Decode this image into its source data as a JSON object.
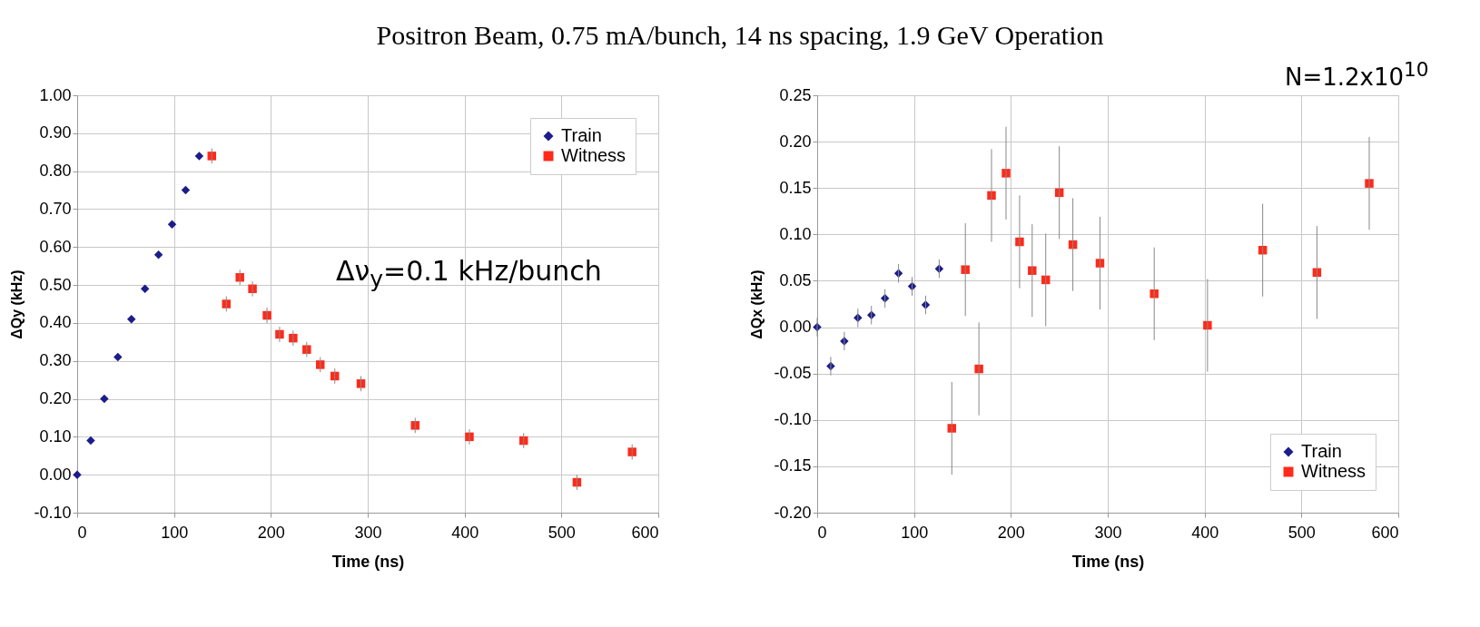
{
  "chart_data": [
    {
      "type": "scatter",
      "title": "Positron Beam, 0.75 mA/bunch, 14 ns spacing, 1.9 GeV Operation",
      "xlabel": "Time  (ns)",
      "ylabel": "ΔQy (kHz)",
      "annotations": [
        "Δν$_{y}$=0.1 kHz/bunch"
      ],
      "grid": true,
      "legend": "top right",
      "xlim": [
        0,
        600
      ],
      "xticks": [
        0,
        100,
        200,
        300,
        400,
        500,
        600
      ],
      "ylim": [
        -0.1,
        1.0
      ],
      "yticks": [
        {
          "value": -0.1,
          "label": "-0.10"
        },
        {
          "value": 0,
          "label": "0.00"
        },
        {
          "value": 0.1,
          "label": "0.10"
        },
        {
          "value": 0.2,
          "label": "0.20"
        },
        {
          "value": 0.3,
          "label": "0.30"
        },
        {
          "value": 0.4,
          "label": "0.40"
        },
        {
          "value": 0.5,
          "label": "0.50"
        },
        {
          "value": 0.6,
          "label": "0.60"
        },
        {
          "value": 0.7,
          "label": "0.70"
        },
        {
          "value": 0.8,
          "label": "0.80"
        },
        {
          "value": 0.9,
          "label": "0.90"
        },
        {
          "value": 1.0,
          "label": "1.00"
        }
      ],
      "series": [
        {
          "name": "Train",
          "color": "#1c1c8a",
          "marker": "diamond",
          "x": [
            0,
            14,
            28,
            42,
            56,
            70,
            84,
            98,
            112,
            126
          ],
          "values": [
            0,
            0.09,
            0.2,
            0.31,
            0.41,
            0.49,
            0.58,
            0.66,
            0.75,
            0.84
          ]
        },
        {
          "name": "Witness",
          "color": "#ff2a1a",
          "marker": "square",
          "x": [
            139,
            154,
            168,
            181,
            196,
            209,
            223,
            237,
            251,
            266,
            293,
            349,
            405,
            461,
            516,
            573
          ],
          "values": [
            0.84,
            0.45,
            0.52,
            0.49,
            0.42,
            0.37,
            0.36,
            0.33,
            0.29,
            0.26,
            0.24,
            0.13,
            0.1,
            0.09,
            -0.02,
            0.06
          ],
          "errors": [
            0.02,
            0.02,
            0.02,
            0.02,
            0.02,
            0.02,
            0.02,
            0.02,
            0.02,
            0.02,
            0.02,
            0.02,
            0.02,
            0.02,
            0.02,
            0.02
          ]
        }
      ]
    },
    {
      "type": "scatter",
      "xlabel": "Time (ns)",
      "ylabel": "ΔQx (kHz)",
      "annotations": [
        "N=1.2x10$^{10}$"
      ],
      "grid": true,
      "legend": "bottom right",
      "xlim": [
        0,
        600
      ],
      "xticks": [
        0,
        100,
        200,
        300,
        400,
        500,
        600
      ],
      "ylim": [
        -0.2,
        0.25
      ],
      "yticks": [
        {
          "value": -0.2,
          "label": "-0.20"
        },
        {
          "value": -0.15,
          "label": "-0.15"
        },
        {
          "value": -0.1,
          "label": "-0.10"
        },
        {
          "value": -0.05,
          "label": "-0.05"
        },
        {
          "value": 0,
          "label": "0.00"
        },
        {
          "value": 0.05,
          "label": "0.05"
        },
        {
          "value": 0.1,
          "label": "0.10"
        },
        {
          "value": 0.15,
          "label": "0.15"
        },
        {
          "value": 0.2,
          "label": "0.20"
        },
        {
          "value": 0.25,
          "label": "0.25"
        }
      ],
      "series": [
        {
          "name": "Train",
          "color": "#1c1c8a",
          "marker": "diamond",
          "x": [
            0,
            14,
            28,
            42,
            56,
            70,
            84,
            98,
            112,
            126
          ],
          "values": [
            0,
            -0.042,
            -0.015,
            0.01,
            0.013,
            0.031,
            0.058,
            0.044,
            0.024,
            0.063
          ],
          "errors": [
            0.01,
            0.01,
            0.01,
            0.01,
            0.01,
            0.01,
            0.01,
            0.01,
            0.01,
            0.01
          ]
        },
        {
          "name": "Witness",
          "color": "#ff2a1a",
          "marker": "square",
          "x": [
            139,
            153,
            167,
            180,
            195,
            209,
            222,
            236,
            250,
            264,
            292,
            348,
            403,
            460,
            516,
            570
          ],
          "values": [
            -0.109,
            0.062,
            -0.045,
            0.142,
            0.166,
            0.092,
            0.061,
            0.051,
            0.145,
            0.089,
            0.069,
            0.036,
            0.002,
            0.083,
            0.059,
            0.155
          ],
          "errors": [
            0.05,
            0.05,
            0.05,
            0.05,
            0.05,
            0.05,
            0.05,
            0.05,
            0.05,
            0.05,
            0.05,
            0.05,
            0.05,
            0.05,
            0.05,
            0.05
          ]
        }
      ]
    }
  ]
}
